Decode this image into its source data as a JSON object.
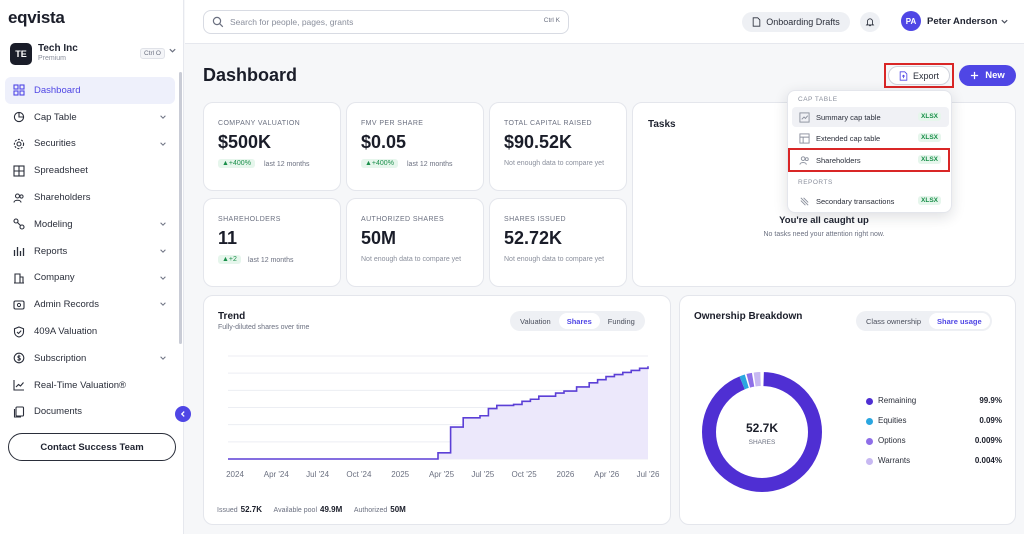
{
  "app": {
    "logo": "eqvista"
  },
  "org": {
    "badge": "TE",
    "name": "Tech Inc",
    "plan": "Premium",
    "shortcut": "Ctrl O"
  },
  "sidebar": {
    "items": [
      {
        "label": "Dashboard",
        "icon": "dashboard-icon",
        "active": true,
        "chevron": false
      },
      {
        "label": "Cap Table",
        "icon": "pie-chart-icon",
        "chevron": true
      },
      {
        "label": "Securities",
        "icon": "gear-icon",
        "chevron": true
      },
      {
        "label": "Spreadsheet",
        "icon": "grid-icon",
        "chevron": false
      },
      {
        "label": "Shareholders",
        "icon": "users-icon",
        "chevron": false
      },
      {
        "label": "Modeling",
        "icon": "modeling-icon",
        "chevron": true
      },
      {
        "label": "Reports",
        "icon": "reports-icon",
        "chevron": true
      },
      {
        "label": "Company",
        "icon": "company-icon",
        "chevron": true
      },
      {
        "label": "Admin Records",
        "icon": "admin-icon",
        "chevron": true
      },
      {
        "label": "409A Valuation",
        "icon": "shield-icon",
        "chevron": false
      },
      {
        "label": "Subscription",
        "icon": "subscription-icon",
        "chevron": true
      },
      {
        "label": "Real-Time Valuation®",
        "icon": "trend-icon",
        "chevron": false
      },
      {
        "label": "Documents",
        "icon": "documents-icon",
        "chevron": false
      }
    ],
    "contact_label": "Contact Success Team"
  },
  "header": {
    "search_placeholder": "Search for people, pages, grants",
    "search_shortcut": "Ctrl K",
    "onboarding_label": "Onboarding Drafts",
    "user_initials": "PA",
    "user_name": "Peter Anderson"
  },
  "page": {
    "title": "Dashboard",
    "export_label": "Export",
    "new_label": "New"
  },
  "stats": [
    {
      "label": "COMPANY VALUATION",
      "value": "$500K",
      "badge": "▲+400%",
      "sub": "last 12 months"
    },
    {
      "label": "FMV PER SHARE",
      "value": "$0.05",
      "badge": "▲+400%",
      "sub": "last 12 months"
    },
    {
      "label": "TOTAL CAPITAL RAISED",
      "value": "$90.52K",
      "note": "Not enough data to compare yet"
    },
    {
      "label": "SHAREHOLDERS",
      "value": "11",
      "badge": "▲+2",
      "sub": "last 12 months"
    },
    {
      "label": "AUTHORIZED SHARES",
      "value": "50M",
      "note": "Not enough data to compare yet"
    },
    {
      "label": "SHARES ISSUED",
      "value": "52.72K",
      "note": "Not enough data to compare yet"
    }
  ],
  "tasks": {
    "title": "Tasks",
    "done": "You're all caught up",
    "sub": "No tasks need your attention right now."
  },
  "export_menu": {
    "section_cap_table": "CAP TABLE",
    "section_reports": "REPORTS",
    "items": [
      {
        "label": "Summary cap table",
        "format": "XLSX",
        "icon": "summary-table-icon"
      },
      {
        "label": "Extended cap table",
        "format": "XLSX",
        "icon": "extended-table-icon"
      },
      {
        "label": "Shareholders",
        "format": "XLSX",
        "icon": "users-icon"
      },
      {
        "label": "Secondary transactions",
        "format": "XLSX",
        "icon": "transactions-icon"
      }
    ]
  },
  "trend": {
    "title": "Trend",
    "subtitle": "Fully-diluted shares over time",
    "tabs": [
      "Valuation",
      "Shares",
      "Funding"
    ],
    "active_tab": "Shares",
    "footer": {
      "issued_label": "Issued",
      "issued": "52.7K",
      "pool_label": "Available pool",
      "pool": "49.9M",
      "authorized_label": "Authorized",
      "authorized": "50M"
    }
  },
  "chart_data": {
    "type": "area",
    "x_tick_labels": [
      "2024",
      "Apr '24",
      "Jul '24",
      "Oct '24",
      "2025",
      "Apr '25",
      "Jul '25",
      "Oct '25",
      "2026",
      "Apr '26",
      "Jul '26"
    ],
    "x": [
      0,
      0.45,
      0.5,
      0.52,
      0.53,
      0.56,
      0.6,
      0.62,
      0.64,
      0.68,
      0.7,
      0.72,
      0.74,
      0.78,
      0.8,
      0.83,
      0.86,
      0.88,
      0.9,
      0.92,
      0.94,
      0.96,
      0.98,
      1.0
    ],
    "y": [
      0.0,
      0.0,
      0.06,
      0.06,
      0.31,
      0.4,
      0.42,
      0.49,
      0.52,
      0.53,
      0.56,
      0.58,
      0.61,
      0.64,
      0.66,
      0.7,
      0.74,
      0.77,
      0.8,
      0.82,
      0.84,
      0.86,
      0.88,
      0.9
    ],
    "grid": true,
    "color": "#5b3fd6",
    "fill_color": "#ece8fb"
  },
  "ownership": {
    "title": "Ownership Breakdown",
    "tabs": [
      "Class ownership",
      "Share usage"
    ],
    "active_tab": "Share usage",
    "center_value": "52.7K",
    "center_label": "SHARES",
    "legend": [
      {
        "name": "Remaining",
        "value": "99.9%",
        "color": "#4f2fd3"
      },
      {
        "name": "Equities",
        "value": "0.09%",
        "color": "#2aa6e0"
      },
      {
        "name": "Options",
        "value": "0.009%",
        "color": "#8e6ee8"
      },
      {
        "name": "Warrants",
        "value": "0.004%",
        "color": "#c7b8f2"
      }
    ]
  }
}
